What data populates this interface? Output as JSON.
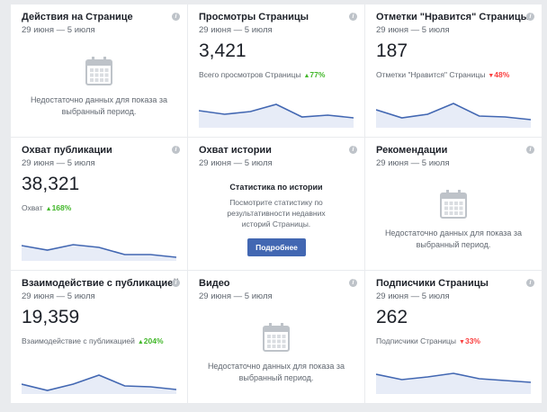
{
  "cards": [
    {
      "title": "Действия на Странице",
      "date": "29 июня — 5 июля",
      "kind": "empty",
      "message": "Недостаточно данных для показа за выбранный период."
    },
    {
      "title": "Просмотры Страницы",
      "date": "29 июня — 5 июля",
      "kind": "metric",
      "value": "3,421",
      "caption": "Всего просмотров Страницы",
      "change": "77%",
      "trend": "up",
      "sparkline": [
        17,
        13,
        16,
        24,
        10,
        12,
        9
      ]
    },
    {
      "title": "Отметки \"Нравится\" Страницы",
      "date": "29 июня — 5 июля",
      "kind": "metric",
      "value": "187",
      "caption": "Отметки \"Нравится\" Страницы",
      "change": "48%",
      "trend": "down",
      "sparkline": [
        18,
        9,
        13,
        25,
        11,
        10,
        7
      ]
    },
    {
      "title": "Охват публикации",
      "date": "29 июня — 5 июля",
      "kind": "metric",
      "value": "38,321",
      "caption": "Охват",
      "change": "168%",
      "trend": "up",
      "sparkline": [
        15,
        10,
        16,
        13,
        5,
        5,
        2
      ]
    },
    {
      "title": "Охват истории",
      "date": "29 июня — 5 июля",
      "kind": "story",
      "box_title": "Статистика по истории",
      "message": "Посмотрите статистику по результативности недавних историй Страницы.",
      "button": "Подробнее"
    },
    {
      "title": "Рекомендации",
      "date": "29 июня — 5 июля",
      "kind": "empty",
      "message": "Недостаточно данных для показа за выбранный период."
    },
    {
      "title": "Взаимодействие с публикацией",
      "date": "29 июня — 5 июля",
      "kind": "metric",
      "value": "19,359",
      "caption": "Взаимодействие с публикацией",
      "change": "204%",
      "trend": "up",
      "sparkline": [
        9,
        2,
        9,
        19,
        7,
        6,
        3
      ]
    },
    {
      "title": "Видео",
      "date": "29 июня — 5 июля",
      "kind": "empty",
      "message": "Недостаточно данных для показа за выбранный период."
    },
    {
      "title": "Подписчики Страницы",
      "date": "29 июня — 5 июля",
      "kind": "metric",
      "value": "262",
      "caption": "Подписчики Страницы",
      "change": "33%",
      "trend": "down",
      "sparkline": [
        20,
        14,
        17,
        21,
        15,
        13,
        11
      ]
    }
  ]
}
